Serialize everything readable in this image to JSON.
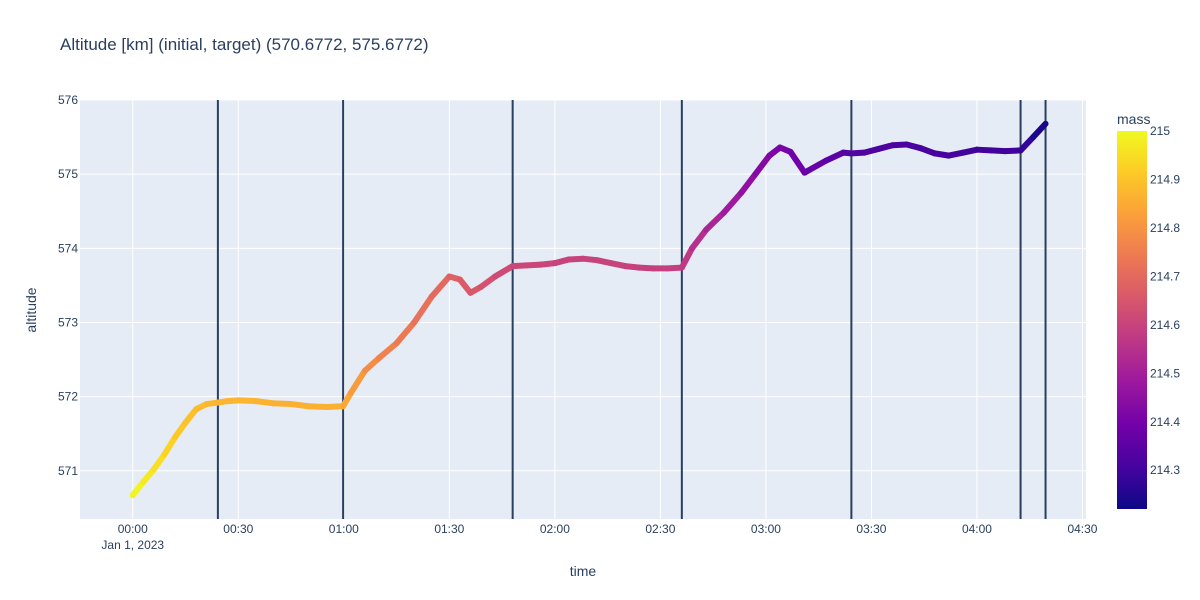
{
  "chart_data": {
    "type": "line",
    "title": "Altitude [km] (initial, target) (570.6772, 575.6772)",
    "xlabel": "time",
    "ylabel": "altitude",
    "x_unit": "minutes since 2023-01-01 00:00",
    "xlim": [
      -15,
      271
    ],
    "ylim": [
      570.35,
      576.0
    ],
    "x_ticks": [
      {
        "value": 0,
        "label": "00:00",
        "sublabel": "Jan 1, 2023"
      },
      {
        "value": 30,
        "label": "00:30"
      },
      {
        "value": 60,
        "label": "01:00"
      },
      {
        "value": 90,
        "label": "01:30"
      },
      {
        "value": 120,
        "label": "02:00"
      },
      {
        "value": 150,
        "label": "02:30"
      },
      {
        "value": 180,
        "label": "03:00"
      },
      {
        "value": 210,
        "label": "03:30"
      },
      {
        "value": 240,
        "label": "04:00"
      },
      {
        "value": 270,
        "label": "04:30"
      }
    ],
    "y_ticks": [
      {
        "value": 571,
        "label": "571"
      },
      {
        "value": 572,
        "label": "572"
      },
      {
        "value": 573,
        "label": "573"
      },
      {
        "value": 574,
        "label": "574"
      },
      {
        "value": 575,
        "label": "575"
      },
      {
        "value": 576,
        "label": "576"
      }
    ],
    "vertical_lines": [
      24.2,
      59.8,
      108.0,
      156.1,
      204.3,
      252.4,
      259.5
    ],
    "series": [
      {
        "name": "altitude",
        "x": [
          0,
          3,
          6,
          9,
          12,
          15,
          18,
          21,
          24.2,
          27,
          30,
          35,
          40,
          45,
          50,
          55,
          59.8,
          62,
          66,
          70,
          75,
          80,
          85,
          90,
          93,
          96,
          99,
          103,
          108,
          112,
          116,
          120,
          124,
          128,
          132,
          136,
          140,
          144,
          148,
          152,
          156.1,
          159,
          163,
          168,
          173,
          177,
          181,
          184,
          187,
          191,
          197,
          202,
          204.3,
          208,
          212,
          216,
          220,
          224,
          228,
          232,
          236,
          240,
          244,
          248,
          252.4,
          256,
          259.5
        ],
        "y": [
          570.67,
          570.85,
          571.02,
          571.22,
          571.45,
          571.65,
          571.83,
          571.9,
          571.92,
          571.94,
          571.95,
          571.94,
          571.91,
          571.9,
          571.87,
          571.86,
          571.87,
          572.05,
          572.35,
          572.52,
          572.72,
          573.0,
          573.35,
          573.62,
          573.58,
          573.4,
          573.48,
          573.62,
          573.76,
          573.77,
          573.78,
          573.8,
          573.85,
          573.86,
          573.84,
          573.8,
          573.76,
          573.74,
          573.73,
          573.73,
          573.74,
          574.0,
          574.25,
          574.48,
          574.75,
          575.0,
          575.25,
          575.36,
          575.3,
          575.02,
          575.18,
          575.29,
          575.28,
          575.29,
          575.34,
          575.39,
          575.4,
          575.35,
          575.28,
          575.25,
          575.29,
          575.33,
          575.32,
          575.31,
          575.32,
          575.5,
          575.68
        ],
        "mass": [
          215.0,
          214.98,
          214.96,
          214.94,
          214.92,
          214.9,
          214.89,
          214.88,
          214.87,
          214.87,
          214.87,
          214.87,
          214.86,
          214.86,
          214.86,
          214.86,
          214.86,
          214.83,
          214.8,
          214.77,
          214.75,
          214.73,
          214.71,
          214.69,
          214.67,
          214.66,
          214.65,
          214.63,
          214.61,
          214.61,
          214.61,
          214.6,
          214.6,
          214.6,
          214.6,
          214.6,
          214.6,
          214.59,
          214.59,
          214.59,
          214.59,
          214.56,
          214.53,
          214.5,
          214.47,
          214.44,
          214.42,
          214.41,
          214.4,
          214.38,
          214.36,
          214.34,
          214.33,
          214.33,
          214.32,
          214.32,
          214.32,
          214.31,
          214.31,
          214.31,
          214.3,
          214.3,
          214.3,
          214.3,
          214.3,
          214.26,
          214.22
        ]
      }
    ],
    "colorbar": {
      "title": "mass",
      "min": 214.22,
      "max": 215.0,
      "ticks": [
        {
          "value": 215.0,
          "label": "215"
        },
        {
          "value": 214.9,
          "label": "214.9"
        },
        {
          "value": 214.8,
          "label": "214.8"
        },
        {
          "value": 214.7,
          "label": "214.7"
        },
        {
          "value": 214.6,
          "label": "214.6"
        },
        {
          "value": 214.5,
          "label": "214.5"
        },
        {
          "value": 214.4,
          "label": "214.4"
        },
        {
          "value": 214.3,
          "label": "214.3"
        }
      ],
      "colorscale": [
        "#0d0887",
        "#46039f",
        "#7201a8",
        "#9c179e",
        "#bd3786",
        "#d8576b",
        "#ed7953",
        "#fb9f3a",
        "#fdca26",
        "#f0f921"
      ]
    },
    "colors": {
      "plot_background": "#e5ecf6",
      "grid": "#ffffff",
      "vertical_line": "#2a3f5f",
      "text": "#2a3f5f"
    }
  }
}
